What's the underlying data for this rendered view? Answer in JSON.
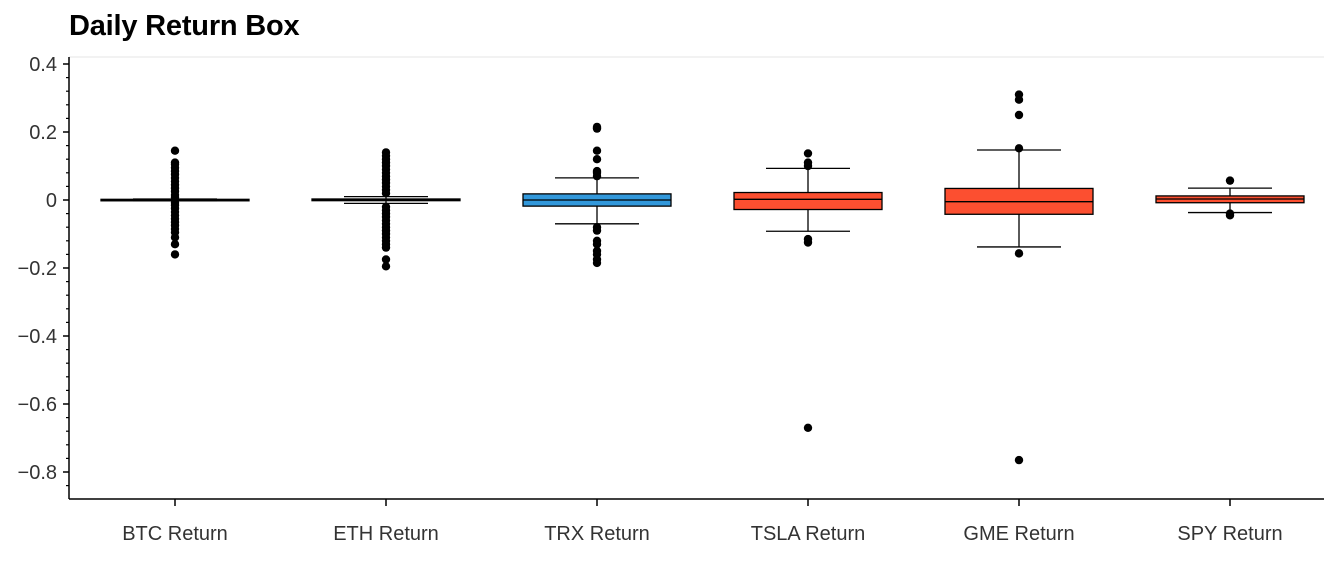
{
  "chart_data": {
    "type": "box",
    "title": "Daily Return Box",
    "xlabel": "",
    "ylabel": "",
    "ylim": [
      -0.8,
      0.4
    ],
    "y_ticks": [
      0.4,
      0.2,
      0,
      -0.2,
      -0.4,
      -0.6,
      -0.8
    ],
    "y_tick_labels": [
      "0.4",
      "0.2",
      "0",
      "−0.2",
      "−0.4",
      "−0.6",
      "−0.8"
    ],
    "grid": false,
    "categories": [
      "BTC Return",
      "ETH Return",
      "TRX Return",
      "TSLA Return",
      "GME Return",
      "SPY Return"
    ],
    "boxes": [
      {
        "category": "BTC Return",
        "color": "#8fbe3f",
        "whisker_low": -0.002,
        "q1": -0.001,
        "median": 0.0005,
        "q3": 0.002,
        "whisker_high": 0.003,
        "outliers": [
          -0.16,
          -0.13,
          -0.11,
          -0.095,
          -0.085,
          -0.075,
          -0.065,
          -0.055,
          -0.045,
          -0.035,
          -0.025,
          -0.015,
          -0.008,
          0.008,
          0.015,
          0.025,
          0.035,
          0.045,
          0.055,
          0.065,
          0.075,
          0.085,
          0.095,
          0.105,
          0.11,
          0.145
        ]
      },
      {
        "category": "ETH Return",
        "color": "#8fbe3f",
        "whisker_low": -0.01,
        "q1": -0.002,
        "median": 0.0,
        "q3": 0.003,
        "whisker_high": 0.01,
        "outliers": [
          -0.195,
          -0.175,
          -0.14,
          -0.13,
          -0.12,
          -0.11,
          -0.1,
          -0.09,
          -0.08,
          -0.07,
          -0.06,
          -0.05,
          -0.04,
          -0.03,
          -0.02,
          0.02,
          0.03,
          0.04,
          0.05,
          0.06,
          0.07,
          0.08,
          0.09,
          0.1,
          0.11,
          0.12,
          0.13,
          0.14
        ]
      },
      {
        "category": "TRX Return",
        "color": "#3298db",
        "whisker_low": -0.07,
        "q1": -0.018,
        "median": 0.0,
        "q3": 0.018,
        "whisker_high": 0.065,
        "outliers": [
          -0.185,
          -0.175,
          -0.16,
          -0.15,
          -0.13,
          -0.12,
          -0.09,
          -0.08,
          0.07,
          0.08,
          0.085,
          0.12,
          0.145,
          0.21,
          0.215
        ]
      },
      {
        "category": "TSLA Return",
        "color": "#fc4f30",
        "whisker_low": -0.092,
        "q1": -0.028,
        "median": 0.002,
        "q3": 0.022,
        "whisker_high": 0.093,
        "outliers": [
          -0.67,
          -0.125,
          -0.115,
          0.1,
          0.11,
          0.137
        ]
      },
      {
        "category": "GME Return",
        "color": "#fc4f30",
        "whisker_low": -0.138,
        "q1": -0.042,
        "median": -0.005,
        "q3": 0.034,
        "whisker_high": 0.147,
        "outliers": [
          -0.765,
          -0.157,
          0.152,
          0.25,
          0.295,
          0.31
        ]
      },
      {
        "category": "SPY Return",
        "color": "#fc4f30",
        "whisker_low": -0.037,
        "q1": -0.008,
        "median": 0.003,
        "q3": 0.012,
        "whisker_high": 0.035,
        "outliers": [
          -0.045,
          -0.04,
          0.057
        ]
      }
    ]
  }
}
